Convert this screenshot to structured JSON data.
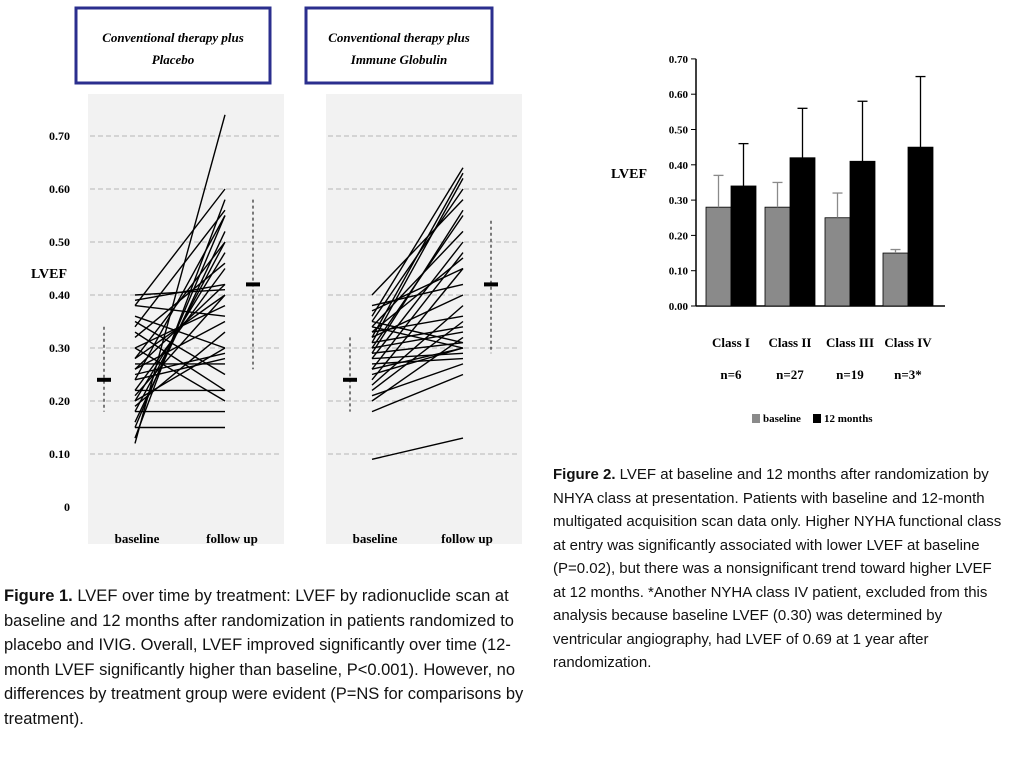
{
  "chart_data": [
    {
      "type": "line",
      "panel_title": "Conventional therapy plus Placebo",
      "ylabel": "LVEF",
      "ylim": [
        0,
        0.75
      ],
      "y_ticks": [
        "0",
        "0.10",
        "0.20",
        "0.30",
        "0.40",
        "0.50",
        "0.60",
        "0.70"
      ],
      "categories": [
        "baseline",
        "follow up"
      ],
      "grid": true,
      "summary": {
        "baseline_mean": 0.24,
        "baseline_range": [
          0.18,
          0.34
        ],
        "followup_mean": 0.42,
        "followup_range": [
          0.26,
          0.58
        ]
      },
      "paired_values": [
        [
          0.12,
          0.74
        ],
        [
          0.13,
          0.58
        ],
        [
          0.15,
          0.55
        ],
        [
          0.16,
          0.52
        ],
        [
          0.18,
          0.5
        ],
        [
          0.2,
          0.48
        ],
        [
          0.22,
          0.45
        ],
        [
          0.24,
          0.55
        ],
        [
          0.26,
          0.42
        ],
        [
          0.28,
          0.4
        ],
        [
          0.3,
          0.38
        ],
        [
          0.34,
          0.56
        ],
        [
          0.38,
          0.6
        ],
        [
          0.39,
          0.42
        ],
        [
          0.4,
          0.41
        ],
        [
          0.38,
          0.36
        ],
        [
          0.36,
          0.3
        ],
        [
          0.33,
          0.22
        ],
        [
          0.3,
          0.2
        ],
        [
          0.27,
          0.27
        ],
        [
          0.25,
          0.29
        ],
        [
          0.22,
          0.22
        ],
        [
          0.2,
          0.3
        ],
        [
          0.18,
          0.18
        ],
        [
          0.15,
          0.15
        ],
        [
          0.28,
          0.5
        ],
        [
          0.32,
          0.46
        ],
        [
          0.35,
          0.25
        ],
        [
          0.26,
          0.35
        ],
        [
          0.24,
          0.28
        ],
        [
          0.21,
          0.4
        ],
        [
          0.19,
          0.33
        ]
      ]
    },
    {
      "type": "line",
      "panel_title": "Conventional therapy plus Immune Globulin",
      "ylim": [
        0,
        0.75
      ],
      "categories": [
        "baseline",
        "follow up"
      ],
      "grid": true,
      "summary": {
        "baseline_mean": 0.24,
        "baseline_range": [
          0.18,
          0.32
        ],
        "followup_mean": 0.42,
        "followup_range": [
          0.29,
          0.54
        ]
      },
      "paired_values": [
        [
          0.09,
          0.13
        ],
        [
          0.18,
          0.25
        ],
        [
          0.2,
          0.32
        ],
        [
          0.22,
          0.35
        ],
        [
          0.24,
          0.45
        ],
        [
          0.25,
          0.3
        ],
        [
          0.26,
          0.3
        ],
        [
          0.27,
          0.28
        ],
        [
          0.28,
          0.5
        ],
        [
          0.29,
          0.31
        ],
        [
          0.3,
          0.33
        ],
        [
          0.3,
          0.55
        ],
        [
          0.31,
          0.62
        ],
        [
          0.32,
          0.4
        ],
        [
          0.33,
          0.36
        ],
        [
          0.34,
          0.3
        ],
        [
          0.34,
          0.52
        ],
        [
          0.35,
          0.6
        ],
        [
          0.36,
          0.64
        ],
        [
          0.37,
          0.45
        ],
        [
          0.38,
          0.42
        ],
        [
          0.4,
          0.58
        ],
        [
          0.28,
          0.29
        ],
        [
          0.26,
          0.48
        ],
        [
          0.23,
          0.38
        ],
        [
          0.21,
          0.27
        ],
        [
          0.31,
          0.34
        ],
        [
          0.33,
          0.47
        ],
        [
          0.35,
          0.31
        ],
        [
          0.29,
          0.56
        ],
        [
          0.32,
          0.63
        ]
      ]
    },
    {
      "type": "bar",
      "ylabel": "LVEF",
      "ylim": [
        0,
        0.7
      ],
      "y_ticks": [
        "0.00",
        "0.10",
        "0.20",
        "0.30",
        "0.40",
        "0.50",
        "0.60",
        "0.70"
      ],
      "categories": [
        "Class I",
        "Class II",
        "Class III",
        "Class IV"
      ],
      "sublabels": [
        "n=6",
        "n=27",
        "n=19",
        "n=3*"
      ],
      "series": [
        {
          "name": "baseline",
          "values": [
            0.28,
            0.28,
            0.25,
            0.15
          ],
          "err": [
            0.09,
            0.07,
            0.07,
            0.01
          ],
          "color": "#8a8a8a"
        },
        {
          "name": "12 months",
          "values": [
            0.34,
            0.42,
            0.41,
            0.45
          ],
          "err": [
            0.12,
            0.14,
            0.17,
            0.2
          ],
          "color": "#000000"
        }
      ],
      "legend_position": "bottom"
    }
  ],
  "captions": {
    "fig1": {
      "label": "Figure 1.",
      "text": " LVEF over time by treatment: LVEF by radionuclide scan at baseline and 12 months after randomization in patients randomized to placebo and IVIG. Overall, LVEF improved significantly over time (12-month LVEF significantly higher than baseline, P<0.001). However, no differences by treatment group were evident (P=NS for comparisons by treatment)."
    },
    "fig2": {
      "label": "Figure 2.",
      "text": " LVEF at baseline and 12 months after randomization by NHYA class at presentation. Patients with baseline and 12-month multigated acquisition scan data only. Higher NYHA functional class at entry was significantly associated with lower LVEF at baseline (P=0.02), but there was a nonsignificant trend toward higher LVEF at 12 months. *Another NYHA class IV patient, excluded from this analysis because baseline LVEF (0.30) was determined by ventricular angiography, had LVEF of 0.69 at 1 year after randomization."
    }
  },
  "colors": {
    "box_border": "#2b2f8e",
    "grid": "#b5b5b5",
    "baseline_bar": "#8a8a8a",
    "month_bar": "#000000"
  }
}
